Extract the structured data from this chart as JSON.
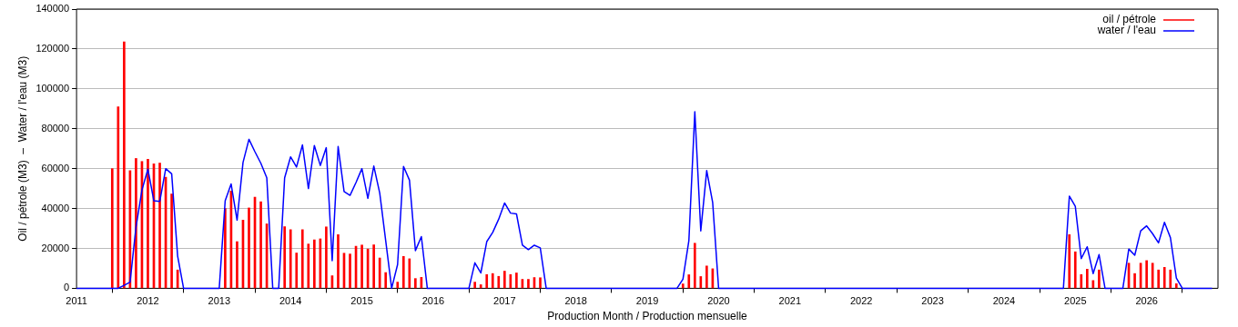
{
  "chart_data": {
    "type": "bar",
    "xlabel": "Production Month / Production mensuelle",
    "ylabel": "Oil / pétrole (M3)  –  Water / l'eau (M3)",
    "xlim": [
      "2011",
      "2027"
    ],
    "xticks": [
      "2011",
      "2012",
      "2013",
      "2014",
      "2015",
      "2016",
      "2017",
      "2018",
      "2019",
      "2020",
      "2021",
      "2022",
      "2023",
      "2024",
      "2025",
      "2026"
    ],
    "ylim": [
      0,
      140000
    ],
    "yticks": [
      0,
      20000,
      40000,
      60000,
      80000,
      100000,
      120000,
      140000
    ],
    "grid": "y",
    "legend": "top right",
    "marker": "none",
    "line_style": "solid",
    "series": [
      {
        "name": "oil / pétrole",
        "color": "#ff0000",
        "x": [
          "2011-07",
          "2011-08",
          "2011-09",
          "2011-10",
          "2011-11",
          "2011-12",
          "2012-01",
          "2012-02",
          "2012-03",
          "2012-04",
          "2012-05",
          "2012-06",
          "2013-02",
          "2013-03",
          "2013-04",
          "2013-05",
          "2013-06",
          "2013-07",
          "2013-08",
          "2013-09",
          "2013-12",
          "2014-01",
          "2014-02",
          "2014-03",
          "2014-04",
          "2014-05",
          "2014-06",
          "2014-07",
          "2014-08",
          "2014-09",
          "2014-10",
          "2014-11",
          "2014-12",
          "2015-01",
          "2015-02",
          "2015-03",
          "2015-04",
          "2015-05",
          "2015-07",
          "2015-08",
          "2015-09",
          "2015-10",
          "2015-11",
          "2016-08",
          "2016-09",
          "2016-10",
          "2016-11",
          "2016-12",
          "2017-01",
          "2017-02",
          "2017-03",
          "2017-04",
          "2017-05",
          "2017-06",
          "2017-07",
          "2019-07",
          "2019-08",
          "2019-09",
          "2019-10",
          "2019-11",
          "2019-12",
          "2024-12",
          "2025-01",
          "2025-02",
          "2025-03",
          "2025-04",
          "2025-05",
          "2025-10",
          "2025-11",
          "2025-12",
          "2026-01",
          "2026-02",
          "2026-03",
          "2026-04",
          "2026-05",
          "2026-06"
        ],
        "values": [
          60000,
          91000,
          123600,
          59000,
          65100,
          63600,
          64700,
          62400,
          62800,
          55700,
          47300,
          9200,
          40000,
          48800,
          23400,
          34200,
          40300,
          45700,
          43400,
          32300,
          30900,
          29400,
          17700,
          29400,
          22200,
          24300,
          24800,
          30800,
          6300,
          26900,
          17600,
          17200,
          21100,
          21700,
          19700,
          21800,
          15200,
          7900,
          3100,
          16000,
          14800,
          4900,
          5500,
          3100,
          1800,
          6900,
          7400,
          6000,
          8600,
          6900,
          7700,
          4500,
          4500,
          5400,
          5300,
          2200,
          6800,
          22600,
          5900,
          11200,
          9800,
          26900,
          18300,
          6900,
          9600,
          3900,
          9200,
          12600,
          7400,
          12600,
          13900,
          12600,
          9200,
          10500,
          9200,
          2300
        ]
      },
      {
        "name": "water / l'eau",
        "type": "line",
        "color": "#0000ff",
        "x": [
          "2011-01",
          "2011-08",
          "2011-09",
          "2011-10",
          "2011-11",
          "2011-12",
          "2012-01",
          "2012-02",
          "2012-03",
          "2012-04",
          "2012-05",
          "2012-06",
          "2012-07",
          "2013-01",
          "2013-02",
          "2013-03",
          "2013-04",
          "2013-05",
          "2013-06",
          "2013-07",
          "2013-08",
          "2013-09",
          "2013-10",
          "2013-11",
          "2013-12",
          "2014-01",
          "2014-02",
          "2014-03",
          "2014-04",
          "2014-05",
          "2014-06",
          "2014-07",
          "2014-08",
          "2014-09",
          "2014-10",
          "2014-11",
          "2014-12",
          "2015-01",
          "2015-02",
          "2015-03",
          "2015-04",
          "2015-05",
          "2015-06",
          "2015-07",
          "2015-08",
          "2015-09",
          "2015-10",
          "2015-11",
          "2015-12",
          "2016-07",
          "2016-08",
          "2016-09",
          "2016-10",
          "2016-11",
          "2016-12",
          "2017-01",
          "2017-02",
          "2017-03",
          "2017-04",
          "2017-05",
          "2017-06",
          "2017-07",
          "2017-08",
          "2019-06",
          "2019-07",
          "2019-08",
          "2019-09",
          "2019-10",
          "2019-11",
          "2019-12",
          "2020-01",
          "2024-11",
          "2024-12",
          "2025-01",
          "2025-02",
          "2025-03",
          "2025-04",
          "2025-05",
          "2025-06",
          "2025-09",
          "2025-10",
          "2025-11",
          "2025-12",
          "2026-01",
          "2026-02",
          "2026-03",
          "2026-04",
          "2026-05",
          "2026-06",
          "2026-07",
          "2026-12"
        ],
        "values": [
          0,
          0,
          1500,
          3100,
          30800,
          49300,
          59700,
          43900,
          43600,
          60000,
          57400,
          16200,
          0,
          0,
          43900,
          52300,
          34200,
          63100,
          74700,
          68500,
          62700,
          55400,
          0,
          0,
          55400,
          65900,
          60800,
          71900,
          50000,
          71600,
          61600,
          70500,
          13900,
          71100,
          48500,
          46600,
          53000,
          60000,
          45100,
          61300,
          47700,
          23900,
          0,
          11900,
          61100,
          54200,
          18900,
          25900,
          0,
          0,
          12800,
          7700,
          23400,
          28000,
          34600,
          42800,
          37700,
          37300,
          21600,
          19400,
          21600,
          20300,
          0,
          0,
          4600,
          23900,
          88500,
          28800,
          59000,
          43100,
          0,
          0,
          46200,
          41100,
          14900,
          20800,
          7400,
          16900,
          0,
          0,
          19700,
          16600,
          28800,
          31300,
          27400,
          22800,
          33100,
          25400,
          5100,
          0,
          0
        ]
      }
    ]
  }
}
